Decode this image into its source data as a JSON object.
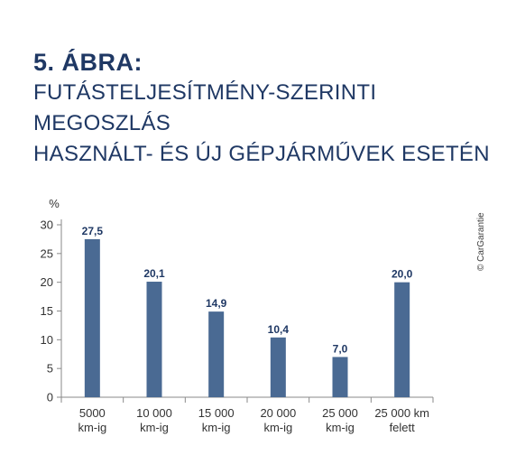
{
  "figure": {
    "label": "5. ÁBRA:",
    "title_line1": "FUTÁSTELJESÍTMÉNY-SZERINTI MEGOSZLÁS",
    "title_line2": "HASZNÁLT- ÉS ÚJ GÉPJÁRMŰVEK ESETÉN"
  },
  "credit": "© CarGarantie",
  "chart_data": {
    "type": "bar",
    "ylabel": "%",
    "ylim": [
      0,
      30
    ],
    "yticks": [
      "0",
      "5",
      "10",
      "15",
      "20",
      "25",
      "30"
    ],
    "categories": [
      [
        "5000",
        "km-ig"
      ],
      [
        "10 000",
        "km-ig"
      ],
      [
        "15 000",
        "km-ig"
      ],
      [
        "20 000",
        "km-ig"
      ],
      [
        "25 000",
        "km-ig"
      ],
      [
        "25 000 km",
        "felett"
      ]
    ],
    "values": [
      27.5,
      20.1,
      14.9,
      10.4,
      7.0,
      20.0
    ],
    "value_labels": [
      "27,5",
      "20,1",
      "14,9",
      "10,4",
      "7,0",
      "20,0"
    ],
    "grid": false,
    "colors": {
      "bar": "#4a6a93",
      "axis": "#8a8a8a",
      "text": "#1f3864"
    }
  }
}
